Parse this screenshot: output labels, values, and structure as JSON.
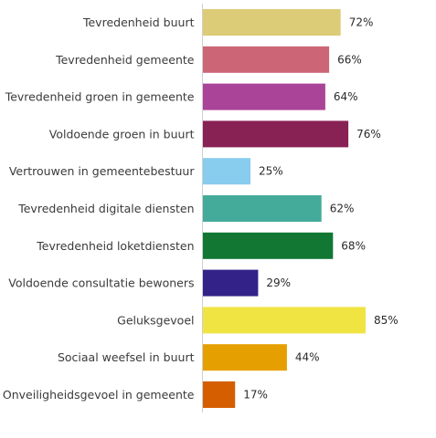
{
  "chart_data": {
    "type": "bar",
    "orientation": "horizontal",
    "title": "",
    "xlabel": "",
    "ylabel": "",
    "xlim": [
      0,
      100
    ],
    "grid": false,
    "value_suffix": "%",
    "categories": [
      "Tevredenheid buurt",
      "Tevredenheid gemeente",
      "Tevredenheid groen in gemeente",
      "Voldoende groen in buurt",
      "Vertrouwen in gemeentebestuur",
      "Tevredenheid digitale diensten",
      "Tevredenheid loketdiensten",
      "Voldoende consultatie bewoners",
      "Geluksgevoel",
      "Sociaal weefsel in buurt",
      "Onveiligheidsgevoel in gemeente"
    ],
    "values": [
      72,
      66,
      64,
      76,
      25,
      62,
      68,
      29,
      85,
      44,
      17
    ],
    "value_labels": [
      "72%",
      "66%",
      "64%",
      "76%",
      "25%",
      "62%",
      "68%",
      "29%",
      "85%",
      "44%",
      "17%"
    ],
    "colors": [
      "#ddcc77",
      "#cc6677",
      "#aa4499",
      "#882255",
      "#88ccee",
      "#44aa99",
      "#117733",
      "#332288",
      "#f0e442",
      "#e69f00",
      "#d55e00"
    ]
  }
}
